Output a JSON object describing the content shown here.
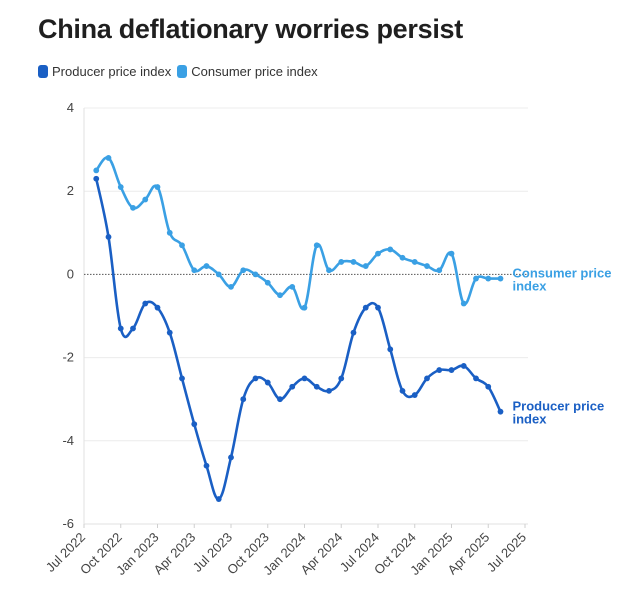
{
  "chart_data": {
    "type": "line",
    "title": "China deflationary worries persist",
    "xlabel": "",
    "ylabel": "",
    "ylim": [
      -6,
      4
    ],
    "y_ticks": [
      "4",
      "2",
      "0",
      "-2",
      "-4",
      "-6"
    ],
    "y_tick_values": [
      4,
      2,
      0,
      -2,
      -4,
      -6
    ],
    "x_tick_labels": [
      "Jul 2022",
      "Oct 2022",
      "Jan 2023",
      "Apr 2023",
      "Jul 2023",
      "Oct 2023",
      "Jan 2024",
      "Apr 2024",
      "Jul 2024",
      "Oct 2024",
      "Jan 2025",
      "Apr 2025",
      "Jul 2025"
    ],
    "x_tick_month_index": [
      0,
      3,
      6,
      9,
      12,
      15,
      18,
      21,
      24,
      27,
      30,
      33,
      36
    ],
    "x_start": "2022-07",
    "x_end": "2025-07",
    "grid": true,
    "reference_line": 0,
    "legend": [
      {
        "name": "Producer price index",
        "color": "#1a5fc4"
      },
      {
        "name": "Consumer price index",
        "color": "#3aa0e4"
      }
    ],
    "series": [
      {
        "name": "Producer price index",
        "end_label": [
          "Producer price",
          "index"
        ],
        "color": "#1a5fc4",
        "start_month_index": 1,
        "values": [
          2.3,
          0.9,
          -1.3,
          -1.3,
          -0.7,
          -0.8,
          -1.4,
          -2.5,
          -3.6,
          -4.6,
          -5.4,
          -4.4,
          -3.0,
          -2.5,
          -2.6,
          -3.0,
          -2.7,
          -2.5,
          -2.7,
          -2.8,
          -2.5,
          -1.4,
          -0.8,
          -0.8,
          -1.8,
          -2.8,
          -2.9,
          -2.5,
          -2.3,
          -2.3,
          -2.2,
          -2.5,
          -2.7,
          -3.3
        ]
      },
      {
        "name": "Consumer price index",
        "end_label": [
          "Consumer price",
          "index"
        ],
        "color": "#3aa0e4",
        "start_month_index": 1,
        "values": [
          2.5,
          2.8,
          2.1,
          1.6,
          1.8,
          2.1,
          1.0,
          0.7,
          0.1,
          0.2,
          0.0,
          -0.3,
          0.1,
          0.0,
          -0.2,
          -0.5,
          -0.3,
          -0.8,
          0.7,
          0.1,
          0.3,
          0.3,
          0.2,
          0.5,
          0.6,
          0.4,
          0.3,
          0.2,
          0.1,
          0.5,
          -0.7,
          -0.1,
          -0.1,
          -0.1
        ]
      }
    ]
  }
}
